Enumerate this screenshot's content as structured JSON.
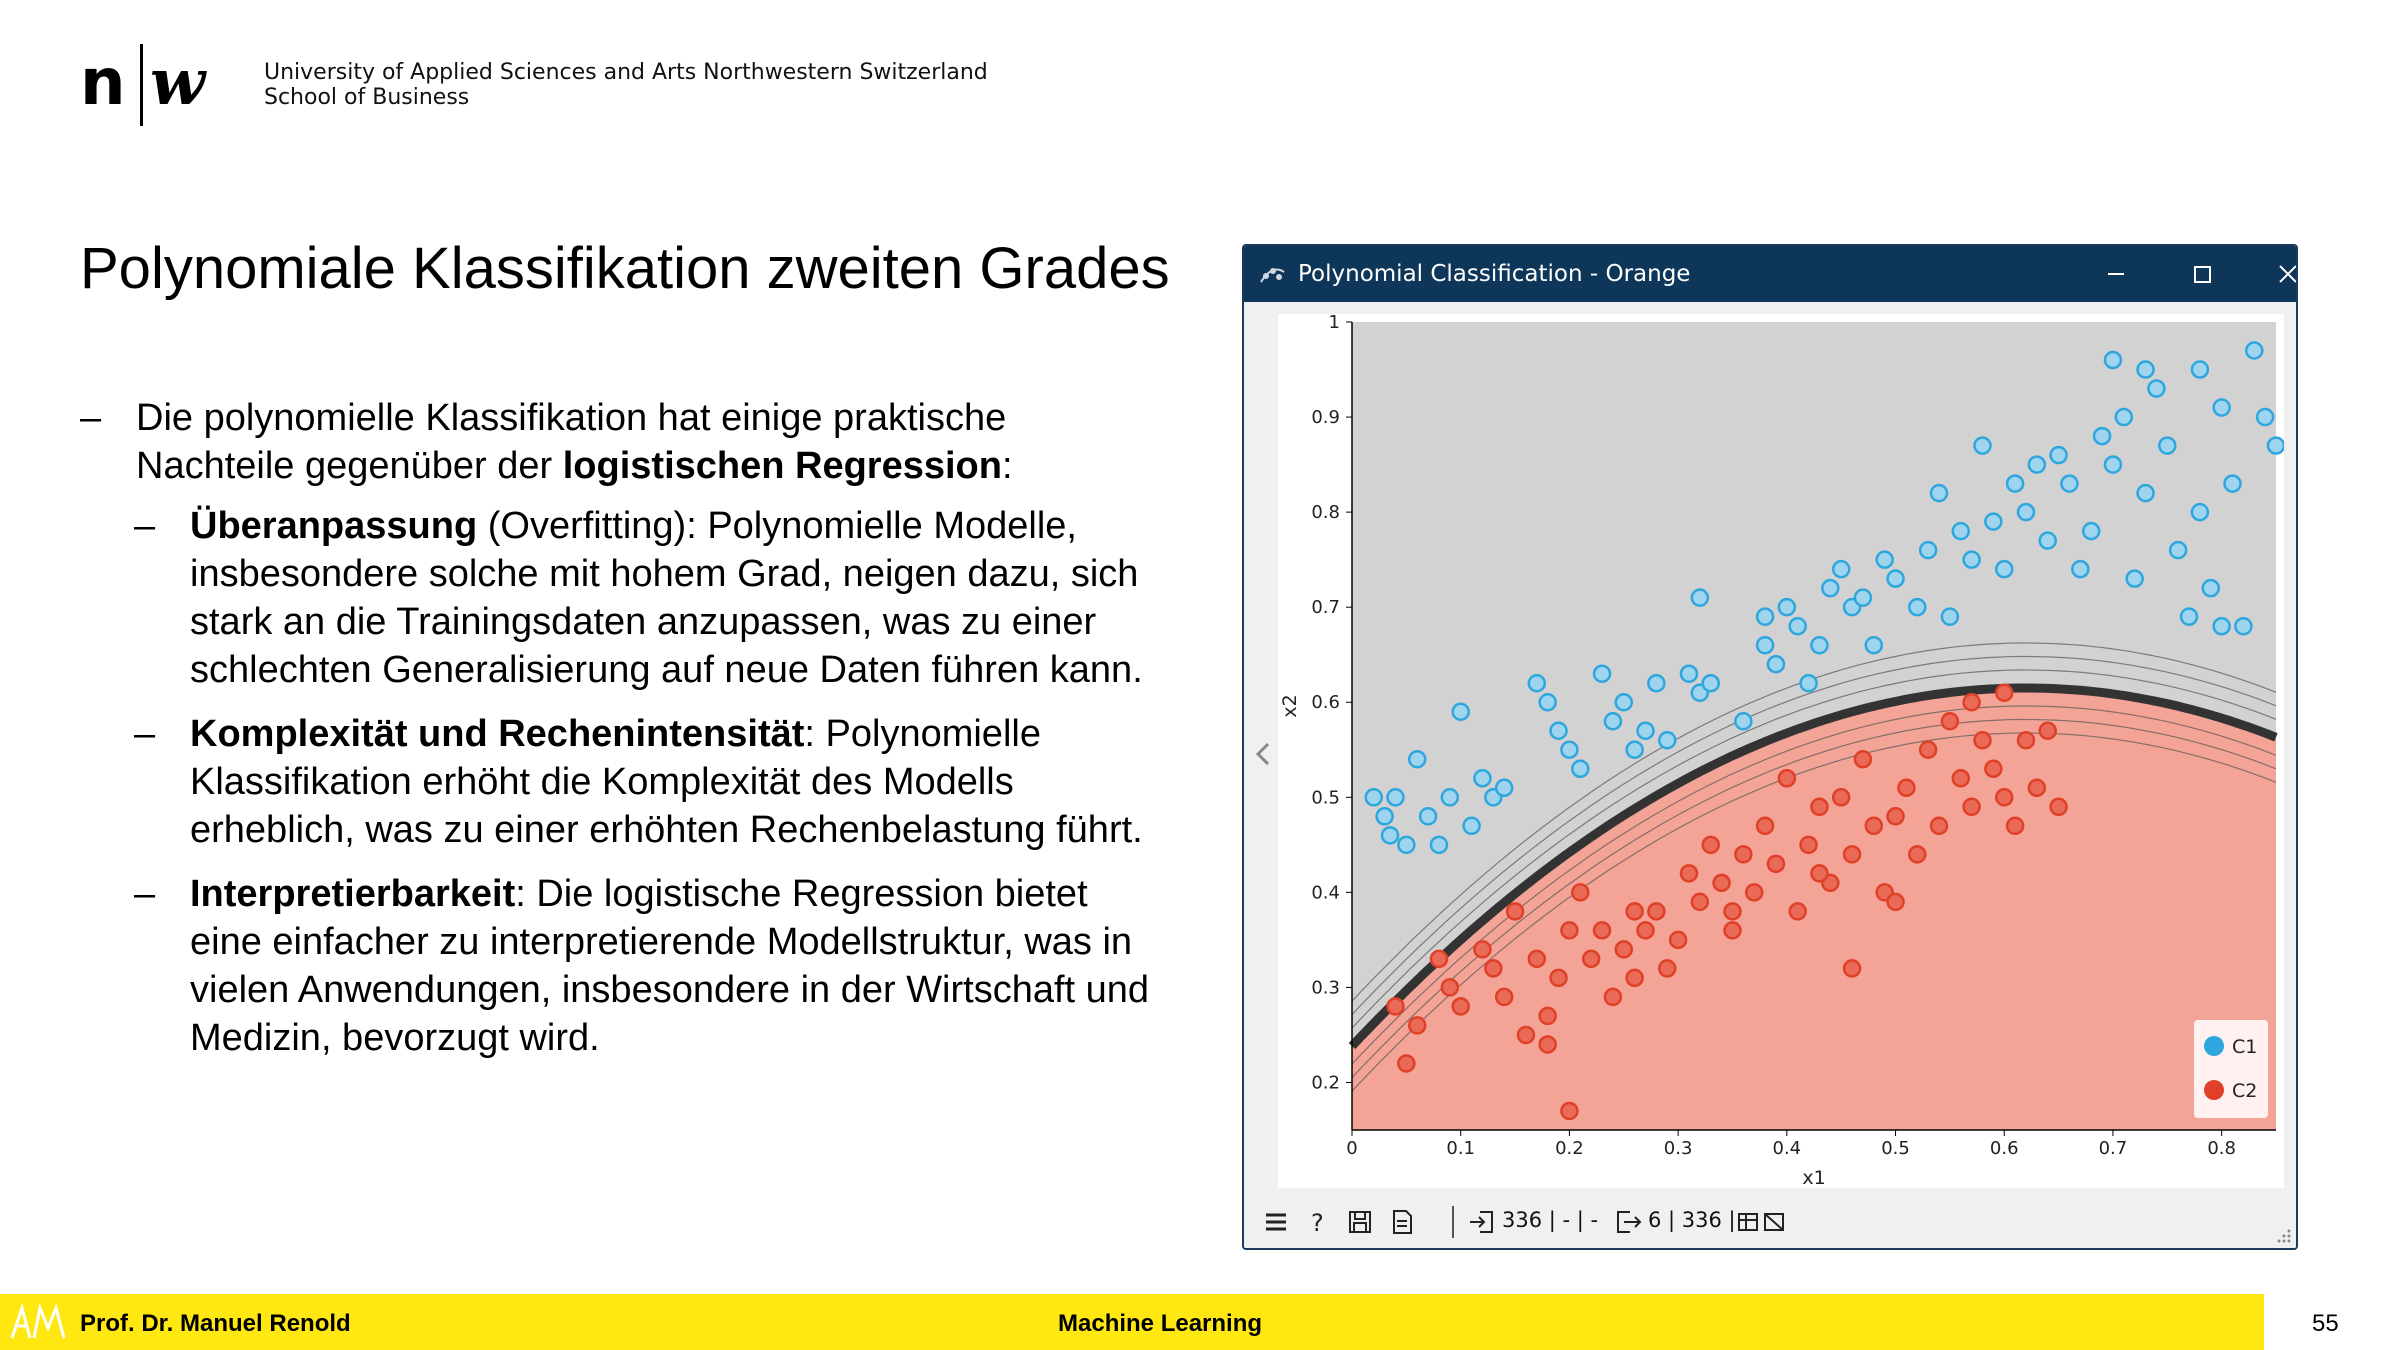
{
  "header": {
    "university_line1": "University of Applied Sciences and Arts Northwestern Switzerland",
    "university_line2": "School of Business"
  },
  "slide": {
    "title": "Polynomiale Klassifikation zweiten Grades",
    "intro_text1": "Die polynomielle Klassifikation hat einige praktische Nachteile gegenüber der ",
    "intro_bold": "logistischen Regression",
    "intro_text2": ":",
    "bullets": [
      {
        "bold": "Überanpassung",
        "text": " (Overfitting): Polynomielle Modelle, insbesondere solche mit hohem Grad, neigen dazu, sich stark an die Trainingsdaten anzupassen, was zu einer schlechten Generalisierung auf neue Daten führen kann."
      },
      {
        "bold": "Komplexität und Rechenintensität",
        "text": ": Polynomielle Klassifikation erhöht die Komplexität des Modells erheblich, was zu einer erhöhten Rechenbelastung führt."
      },
      {
        "bold": "Interpretierbarkeit",
        "text": ": Die logistische Regression bietet eine einfacher zu interpretierende Modellstruktur, was in vielen Anwendungen, insbesondere in der Wirtschaft und Medizin, bevorzugt wird."
      }
    ]
  },
  "window": {
    "title": "Polynomial Classification - Orange",
    "status_input": "336 | - | -",
    "status_output": "6 | 336 |"
  },
  "chart_data": {
    "type": "scatter",
    "xlabel": "x1",
    "ylabel": "x2",
    "xlim": [
      0,
      0.85
    ],
    "ylim": [
      0.15,
      1.0
    ],
    "x_ticks": [
      "0",
      "0.1",
      "0.2",
      "0.3",
      "0.4",
      "0.5",
      "0.6",
      "0.7",
      "0.8"
    ],
    "y_ticks": [
      "0.2",
      "0.3",
      "0.4",
      "0.5",
      "0.6",
      "0.7",
      "0.8",
      "0.9",
      "1"
    ],
    "legend": [
      {
        "name": "C1",
        "color": "#2ea6de"
      },
      {
        "name": "C2",
        "color": "#e04027"
      }
    ],
    "legend_position": "bottom-right",
    "boundary": {
      "vertex_x": 0.62,
      "vertex_y": 0.615,
      "curvature": 0.98
    },
    "series": [
      {
        "name": "C1",
        "color": "#2ea6de",
        "points": [
          [
            0.02,
            0.5
          ],
          [
            0.03,
            0.48
          ],
          [
            0.035,
            0.46
          ],
          [
            0.04,
            0.5
          ],
          [
            0.05,
            0.45
          ],
          [
            0.06,
            0.54
          ],
          [
            0.07,
            0.48
          ],
          [
            0.08,
            0.45
          ],
          [
            0.09,
            0.5
          ],
          [
            0.1,
            0.59
          ],
          [
            0.11,
            0.47
          ],
          [
            0.12,
            0.52
          ],
          [
            0.13,
            0.5
          ],
          [
            0.14,
            0.51
          ],
          [
            0.17,
            0.62
          ],
          [
            0.18,
            0.6
          ],
          [
            0.19,
            0.57
          ],
          [
            0.2,
            0.55
          ],
          [
            0.21,
            0.53
          ],
          [
            0.23,
            0.63
          ],
          [
            0.24,
            0.58
          ],
          [
            0.25,
            0.6
          ],
          [
            0.26,
            0.55
          ],
          [
            0.27,
            0.57
          ],
          [
            0.28,
            0.62
          ],
          [
            0.29,
            0.56
          ],
          [
            0.31,
            0.63
          ],
          [
            0.32,
            0.61
          ],
          [
            0.33,
            0.62
          ],
          [
            0.32,
            0.71
          ],
          [
            0.36,
            0.58
          ],
          [
            0.38,
            0.66
          ],
          [
            0.38,
            0.69
          ],
          [
            0.39,
            0.64
          ],
          [
            0.4,
            0.7
          ],
          [
            0.41,
            0.68
          ],
          [
            0.42,
            0.62
          ],
          [
            0.43,
            0.66
          ],
          [
            0.44,
            0.72
          ],
          [
            0.45,
            0.74
          ],
          [
            0.46,
            0.7
          ],
          [
            0.47,
            0.71
          ],
          [
            0.48,
            0.66
          ],
          [
            0.49,
            0.75
          ],
          [
            0.5,
            0.73
          ],
          [
            0.52,
            0.7
          ],
          [
            0.53,
            0.76
          ],
          [
            0.54,
            0.82
          ],
          [
            0.55,
            0.69
          ],
          [
            0.56,
            0.78
          ],
          [
            0.57,
            0.75
          ],
          [
            0.58,
            0.87
          ],
          [
            0.59,
            0.79
          ],
          [
            0.6,
            0.74
          ],
          [
            0.61,
            0.83
          ],
          [
            0.62,
            0.8
          ],
          [
            0.63,
            0.85
          ],
          [
            0.64,
            0.77
          ],
          [
            0.65,
            0.86
          ],
          [
            0.66,
            0.83
          ],
          [
            0.67,
            0.74
          ],
          [
            0.68,
            0.78
          ],
          [
            0.69,
            0.88
          ],
          [
            0.7,
            0.85
          ],
          [
            0.71,
            0.9
          ],
          [
            0.72,
            0.73
          ],
          [
            0.73,
            0.82
          ],
          [
            0.74,
            0.93
          ],
          [
            0.75,
            0.87
          ],
          [
            0.76,
            0.76
          ],
          [
            0.77,
            0.69
          ],
          [
            0.78,
            0.8
          ],
          [
            0.79,
            0.72
          ],
          [
            0.8,
            0.91
          ],
          [
            0.81,
            0.83
          ],
          [
            0.82,
            0.68
          ],
          [
            0.83,
            0.97
          ],
          [
            0.84,
            0.9
          ],
          [
            0.85,
            0.87
          ],
          [
            0.7,
            0.96
          ],
          [
            0.73,
            0.95
          ],
          [
            0.78,
            0.95
          ],
          [
            0.8,
            0.68
          ]
        ]
      },
      {
        "name": "C2",
        "color": "#e04027",
        "points": [
          [
            0.04,
            0.28
          ],
          [
            0.05,
            0.22
          ],
          [
            0.06,
            0.26
          ],
          [
            0.08,
            0.33
          ],
          [
            0.09,
            0.3
          ],
          [
            0.1,
            0.28
          ],
          [
            0.12,
            0.34
          ],
          [
            0.14,
            0.29
          ],
          [
            0.15,
            0.38
          ],
          [
            0.16,
            0.25
          ],
          [
            0.17,
            0.33
          ],
          [
            0.18,
            0.27
          ],
          [
            0.19,
            0.31
          ],
          [
            0.2,
            0.36
          ],
          [
            0.21,
            0.4
          ],
          [
            0.22,
            0.33
          ],
          [
            0.23,
            0.36
          ],
          [
            0.24,
            0.29
          ],
          [
            0.25,
            0.34
          ],
          [
            0.26,
            0.31
          ],
          [
            0.27,
            0.36
          ],
          [
            0.28,
            0.38
          ],
          [
            0.29,
            0.32
          ],
          [
            0.3,
            0.35
          ],
          [
            0.31,
            0.42
          ],
          [
            0.32,
            0.39
          ],
          [
            0.33,
            0.45
          ],
          [
            0.34,
            0.41
          ],
          [
            0.35,
            0.38
          ],
          [
            0.36,
            0.44
          ],
          [
            0.37,
            0.4
          ],
          [
            0.38,
            0.47
          ],
          [
            0.39,
            0.43
          ],
          [
            0.4,
            0.52
          ],
          [
            0.41,
            0.38
          ],
          [
            0.42,
            0.45
          ],
          [
            0.43,
            0.49
          ],
          [
            0.44,
            0.41
          ],
          [
            0.45,
            0.5
          ],
          [
            0.46,
            0.44
          ],
          [
            0.47,
            0.54
          ],
          [
            0.48,
            0.47
          ],
          [
            0.49,
            0.4
          ],
          [
            0.5,
            0.48
          ],
          [
            0.51,
            0.51
          ],
          [
            0.52,
            0.44
          ],
          [
            0.53,
            0.55
          ],
          [
            0.54,
            0.47
          ],
          [
            0.55,
            0.58
          ],
          [
            0.56,
            0.52
          ],
          [
            0.57,
            0.49
          ],
          [
            0.58,
            0.56
          ],
          [
            0.59,
            0.53
          ],
          [
            0.6,
            0.5
          ],
          [
            0.61,
            0.47
          ],
          [
            0.62,
            0.56
          ],
          [
            0.63,
            0.51
          ],
          [
            0.64,
            0.57
          ],
          [
            0.65,
            0.49
          ],
          [
            0.2,
            0.17
          ],
          [
            0.35,
            0.36
          ],
          [
            0.46,
            0.32
          ],
          [
            0.5,
            0.39
          ],
          [
            0.57,
            0.6
          ],
          [
            0.6,
            0.61
          ],
          [
            0.13,
            0.32
          ],
          [
            0.18,
            0.24
          ],
          [
            0.26,
            0.38
          ],
          [
            0.43,
            0.42
          ]
        ]
      }
    ]
  }
}
